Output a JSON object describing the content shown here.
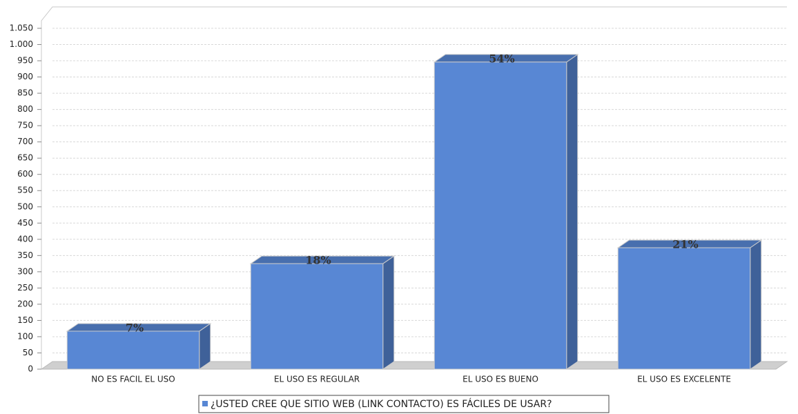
{
  "chart_data": {
    "type": "bar3d",
    "categories": [
      "NO ES FACIL EL USO",
      "EL USO ES REGULAR",
      "EL USO ES BUENO",
      "EL USO ES EXCELENTE"
    ],
    "series": [
      {
        "name": "¿USTED CREE QUE SITIO WEB (LINK CONTACTO) ES FÁCILES DE USAR?",
        "color": "#5887d4",
        "values": [
          117,
          325,
          946,
          374
        ]
      }
    ],
    "bar_labels": [
      "7%",
      "18%",
      "54%",
      "21%"
    ],
    "ylim": [
      0,
      1050
    ],
    "yticks": [
      0,
      50,
      100,
      150,
      200,
      250,
      300,
      350,
      400,
      450,
      500,
      550,
      600,
      650,
      700,
      750,
      800,
      850,
      900,
      950,
      {
        "value": 1000,
        "label": "1.000"
      },
      {
        "value": 1050,
        "label": "1.050"
      }
    ],
    "grid": true,
    "legend": "bottom"
  }
}
